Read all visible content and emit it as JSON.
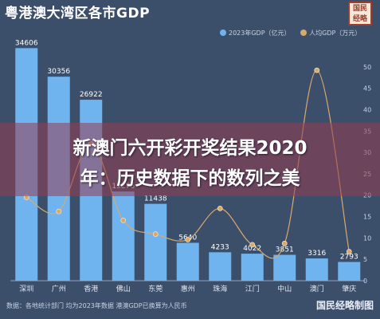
{
  "title": "粤港澳大湾区各市GDP",
  "logo_text": "国民经略",
  "headline_lines": [
    "新澳门六开彩开奖结果2020",
    "年：历史数据下的数列之美"
  ],
  "footer": {
    "note": "数据：各地统计部门 均为2023年数据 港澳GDP已换算为人民币",
    "brand": "国民经略制图"
  },
  "colors": {
    "background": "#3b4f6a",
    "bar": "#6fb4ef",
    "line": "#d9a96c",
    "banner": "#8c3f57"
  },
  "chart_data": {
    "type": "bar",
    "categories": [
      "深圳",
      "广州",
      "香港",
      "佛山",
      "东莞",
      "惠州",
      "珠海",
      "江门",
      "中山",
      "澳门",
      "肇庆"
    ],
    "series": [
      {
        "name": "2023年GDP（亿元）",
        "type": "bar",
        "axis": "left",
        "values": [
          34606,
          30356,
          26922,
          13276,
          11438,
          5640,
          4233,
          4022,
          3851,
          3316,
          2793
        ],
        "labels": [
          "34606",
          "30356",
          "26922",
          "13276",
          "11438",
          "5640",
          "4233",
          "4022",
          "3851",
          "3316",
          "2793"
        ]
      },
      {
        "name": "人均GDP（万元）",
        "type": "line",
        "axis": "right",
        "values": [
          19.5,
          16.2,
          32.0,
          14.1,
          10.9,
          9.6,
          16.9,
          8.4,
          8.7,
          49.2,
          6.8
        ]
      }
    ],
    "ylim_left": [
      0,
      35000
    ],
    "ylim_right": [
      0,
      55
    ],
    "yticks_right": [
      0,
      5,
      10,
      15,
      20,
      25,
      30,
      35,
      40,
      45,
      50
    ],
    "grid": false,
    "legend": "top-right"
  }
}
